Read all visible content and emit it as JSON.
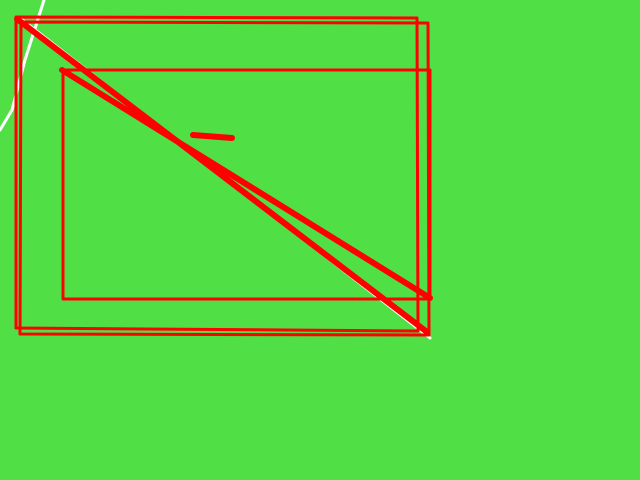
{
  "canvas": {
    "background_color": "#50E045",
    "stroke_color": "#FF0000",
    "highlight_color": "#FFFFFF"
  },
  "drawing": {
    "shape_types": [
      "outer-rectangle",
      "outer-rectangle-offset",
      "inner-rectangle",
      "diagonal-stroke-main",
      "diagonal-stroke-inner",
      "short-dash-stroke",
      "white-edge-stroke"
    ]
  }
}
